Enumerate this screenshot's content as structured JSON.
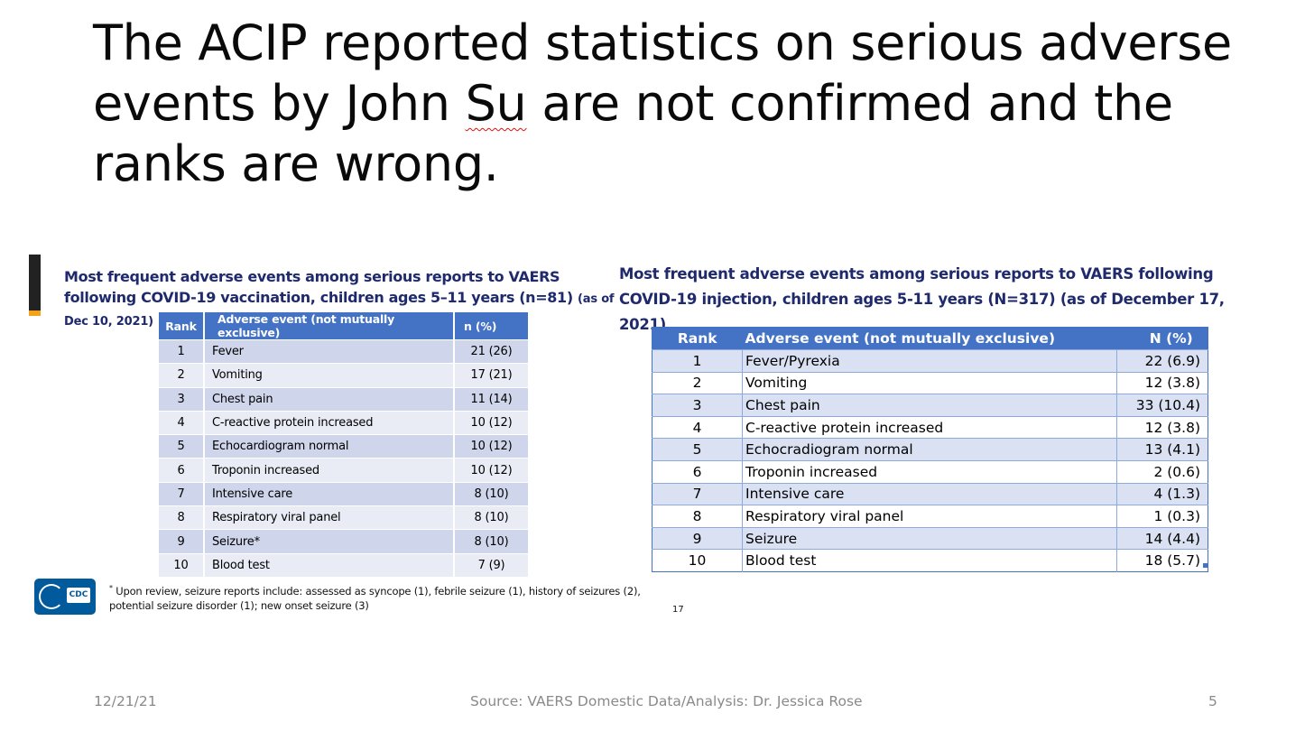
{
  "title": {
    "part1": "The ACIP reported statistics on serious adverse events by John ",
    "flagged_word": "Su",
    "part2": " are not confirmed and the ranks are wrong."
  },
  "left_panel": {
    "heading_main": "Most frequent adverse events among serious reports to VAERS following COVID-19 vaccination, children ages 5–11 years (n=81) ",
    "heading_small": "(as of Dec 10, 2021)",
    "columns": [
      "Rank",
      "Adverse event (not mutually exclusive)",
      "n (%)"
    ],
    "rows": [
      [
        "1",
        "Fever",
        "21 (26)"
      ],
      [
        "2",
        "Vomiting",
        "17 (21)"
      ],
      [
        "3",
        "Chest pain",
        "11 (14)"
      ],
      [
        "4",
        "C-reactive protein increased",
        "10 (12)"
      ],
      [
        "5",
        "Echocardiogram normal",
        "10 (12)"
      ],
      [
        "6",
        "Troponin increased",
        "10 (12)"
      ],
      [
        "7",
        "Intensive care",
        "8 (10)"
      ],
      [
        "8",
        "Respiratory viral panel",
        "8 (10)"
      ],
      [
        "9",
        "Seizure*",
        "8 (10)"
      ],
      [
        "10",
        "Blood test",
        "7 (9)"
      ]
    ],
    "footnote_marker": "*",
    "footnote": " Upon review, seizure reports include: assessed as syncope (1), febrile seizure (1), history of seizures (2), potential seizure disorder (1); new onset seizure (3)",
    "logo_text": "CDC",
    "slide_number": "17"
  },
  "right_panel": {
    "heading": "Most frequent adverse events among serious reports to VAERS following COVID-19 injection, children ages 5-11 years (N=317) (as of December 17, 2021)",
    "columns": [
      "Rank",
      "Adverse event (not mutually exclusive)",
      "N (%)"
    ],
    "rows": [
      [
        "1",
        "Fever/Pyrexia",
        "22 (6.9)"
      ],
      [
        "2",
        "Vomiting",
        "12 (3.8)"
      ],
      [
        "3",
        "Chest pain",
        "33 (10.4)"
      ],
      [
        "4",
        "C-reactive protein increased",
        "12 (3.8)"
      ],
      [
        "5",
        "Echocradiogram normal",
        "13 (4.1)"
      ],
      [
        "6",
        "Troponin increased",
        "2 (0.6)"
      ],
      [
        "7",
        "Intensive care",
        "4 (1.3)"
      ],
      [
        "8",
        "Respiratory viral panel",
        "1 (0.3)"
      ],
      [
        "9",
        "Seizure",
        "14 (4.4)"
      ],
      [
        "10",
        "Blood test",
        "18 (5.7)"
      ]
    ]
  },
  "footer": {
    "date": "12/21/21",
    "source": "Source: VAERS Domestic Data/Analysis: Dr. Jessica Rose",
    "page": "5"
  },
  "colors": {
    "heading_navy": "#1f2a6d",
    "table_header_blue": "#4472c4",
    "accent_orange": "#f3a21a",
    "cdc_blue": "#005a9c",
    "footer_gray": "#8a8a8a"
  }
}
